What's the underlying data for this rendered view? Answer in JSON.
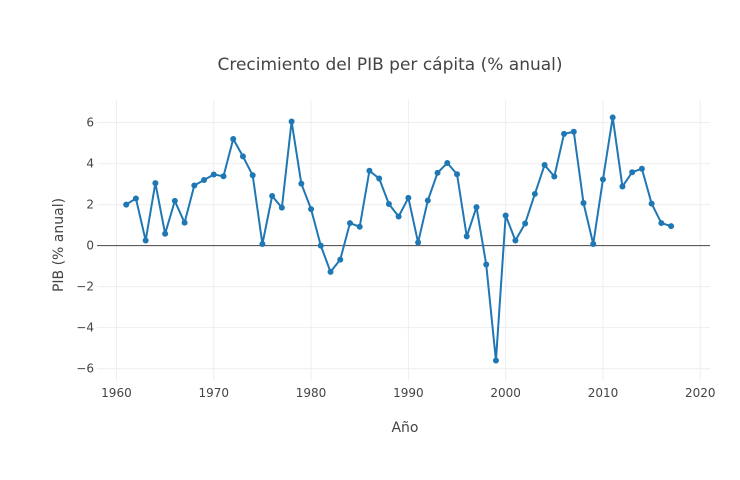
{
  "chart_data": {
    "type": "line",
    "title": "Crecimiento del PIB per cápita (% anual)",
    "xlabel": "Año",
    "ylabel": "PIB (% anual)",
    "xlim": [
      1958,
      2021
    ],
    "ylim": [
      -6.6,
      7.1
    ],
    "x_ticks": [
      1960,
      1970,
      1980,
      1990,
      2000,
      2010,
      2020
    ],
    "y_ticks": [
      -6,
      -4,
      -2,
      0,
      2,
      4,
      6
    ],
    "grid": true,
    "line_color": "#1f77b4",
    "series": [
      {
        "x": [
          1961,
          1962,
          1963,
          1964,
          1965,
          1966,
          1967,
          1968,
          1969,
          1970,
          1971,
          1972,
          1973,
          1974,
          1975,
          1976,
          1977,
          1978,
          1979,
          1980,
          1981,
          1982,
          1983,
          1984,
          1985,
          1986,
          1987,
          1988,
          1989,
          1990,
          1991,
          1992,
          1993,
          1994,
          1995,
          1996,
          1997,
          1998,
          1999,
          2000,
          2001,
          2002,
          2003,
          2004,
          2005,
          2006,
          2007,
          2008,
          2009,
          2010,
          2011,
          2012,
          2013,
          2014,
          2015,
          2016,
          2017
        ],
        "y": [
          2.0,
          2.3,
          0.25,
          3.05,
          0.58,
          2.18,
          1.12,
          2.93,
          3.2,
          3.47,
          3.38,
          5.2,
          4.35,
          3.43,
          0.08,
          2.42,
          1.85,
          6.05,
          3.02,
          1.78,
          0.0,
          -1.28,
          -0.68,
          1.1,
          0.92,
          3.65,
          3.27,
          2.03,
          1.42,
          2.33,
          0.15,
          2.2,
          3.55,
          4.03,
          3.48,
          0.45,
          1.88,
          -0.92,
          -5.6,
          1.47,
          0.25,
          1.08,
          2.52,
          3.93,
          3.37,
          5.45,
          5.55,
          2.08,
          0.08,
          3.23,
          6.25,
          2.88,
          3.58,
          3.75,
          2.05,
          1.1,
          0.95
        ]
      }
    ]
  }
}
